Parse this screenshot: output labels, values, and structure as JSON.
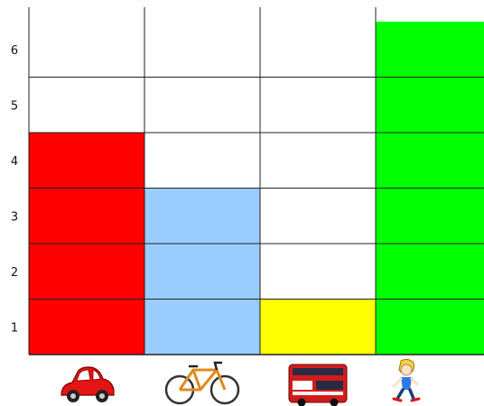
{
  "chart_data": {
    "type": "bar",
    "categories": [
      "car",
      "bicycle",
      "bus",
      "walking"
    ],
    "category_icons": [
      "car-icon",
      "bicycle-icon",
      "bus-icon",
      "walking-child-icon"
    ],
    "values": [
      4,
      3,
      1,
      6
    ],
    "colors": [
      "#ff0000",
      "#99ccff",
      "#ffff00",
      "#00ff00"
    ],
    "ylim": [
      0,
      6
    ],
    "yticks": [
      "1",
      "2",
      "3",
      "4",
      "5",
      "6"
    ],
    "grid": true,
    "legend": "none"
  }
}
